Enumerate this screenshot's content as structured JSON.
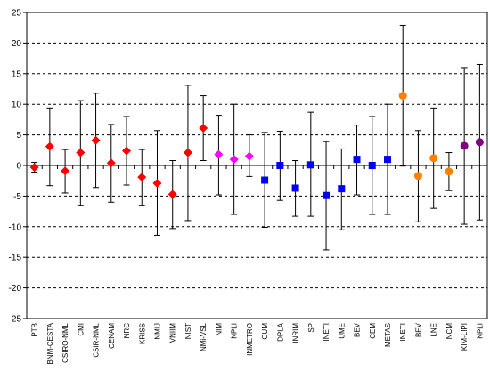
{
  "chart_data": {
    "type": "scatter",
    "title": "",
    "xlabel": "",
    "ylabel": "",
    "ylim": [
      -25,
      25
    ],
    "yticks": [
      25,
      20,
      15,
      10,
      5,
      0,
      -5,
      -10,
      -15,
      -20,
      -25
    ],
    "grid": "horizontal dashed",
    "legend": "none",
    "categories": [
      "PTB",
      "BNM-CESTA",
      "CSIRO-NML",
      "CMI",
      "CSIR-NML",
      "CENAM",
      "NRC",
      "KRISS",
      "NMIJ",
      "VNIIM",
      "NIST",
      "NMi-VSL",
      "NIM",
      "NPLI",
      "INMETRO",
      "GUM",
      "DPLA",
      "INRIM",
      "SP",
      "INETI",
      "UME",
      "BEV",
      "CEM",
      "METAS",
      "INETI",
      "BEV",
      "LNE",
      "NCM",
      "KIM-LIPI",
      "NPLI"
    ],
    "values": [
      -0.3,
      3.1,
      -0.9,
      2.1,
      4.1,
      0.4,
      2.4,
      -1.9,
      -2.9,
      -4.7,
      2.1,
      6.1,
      1.8,
      1.0,
      1.5,
      -2.4,
      0.0,
      -3.7,
      0.1,
      -4.9,
      -3.8,
      1.0,
      0.0,
      1.0,
      11.4,
      -1.7,
      1.2,
      -1.0,
      3.2,
      3.8
    ],
    "error_upper": [
      0.5,
      9.4,
      2.6,
      10.6,
      11.8,
      6.7,
      8.0,
      2.6,
      5.7,
      0.8,
      13.1,
      11.4,
      8.2,
      10.0,
      5.0,
      5.4,
      5.6,
      0.8,
      8.7,
      3.9,
      2.7,
      6.6,
      8.0,
      10.0,
      22.9,
      5.7,
      9.4,
      2.1,
      16.0,
      16.5
    ],
    "error_lower": [
      -1.1,
      -3.3,
      -4.5,
      -6.5,
      -3.6,
      -6.0,
      -3.2,
      -6.5,
      -11.4,
      -10.3,
      -9.0,
      0.8,
      -4.8,
      -8.0,
      -1.8,
      -10.1,
      -5.7,
      -8.3,
      -8.3,
      -13.8,
      -10.5,
      -4.8,
      -8.0,
      -8.0,
      -0.1,
      -9.2,
      -7.0,
      -4.1,
      -9.6,
      -8.9
    ],
    "markers": [
      "diamond",
      "diamond",
      "diamond",
      "diamond",
      "diamond",
      "diamond",
      "diamond",
      "diamond",
      "diamond",
      "diamond",
      "diamond",
      "diamond",
      "diamond",
      "diamond",
      "diamond",
      "square",
      "square",
      "square",
      "square",
      "square",
      "square",
      "square",
      "square",
      "square",
      "circle",
      "circle",
      "circle",
      "circle",
      "circle",
      "circle"
    ],
    "colors": [
      "#ff0000",
      "#ff0000",
      "#ff0000",
      "#ff0000",
      "#ff0000",
      "#ff0000",
      "#ff0000",
      "#ff0000",
      "#ff0000",
      "#ff0000",
      "#ff0000",
      "#ff0000",
      "#ff00ff",
      "#ff00ff",
      "#ff00ff",
      "#0000ff",
      "#0000ff",
      "#0000ff",
      "#0000ff",
      "#0000ff",
      "#0000ff",
      "#0000ff",
      "#0000ff",
      "#0000ff",
      "#ff8000",
      "#ff8000",
      "#ff8000",
      "#ff8000",
      "#800080",
      "#800080"
    ]
  }
}
